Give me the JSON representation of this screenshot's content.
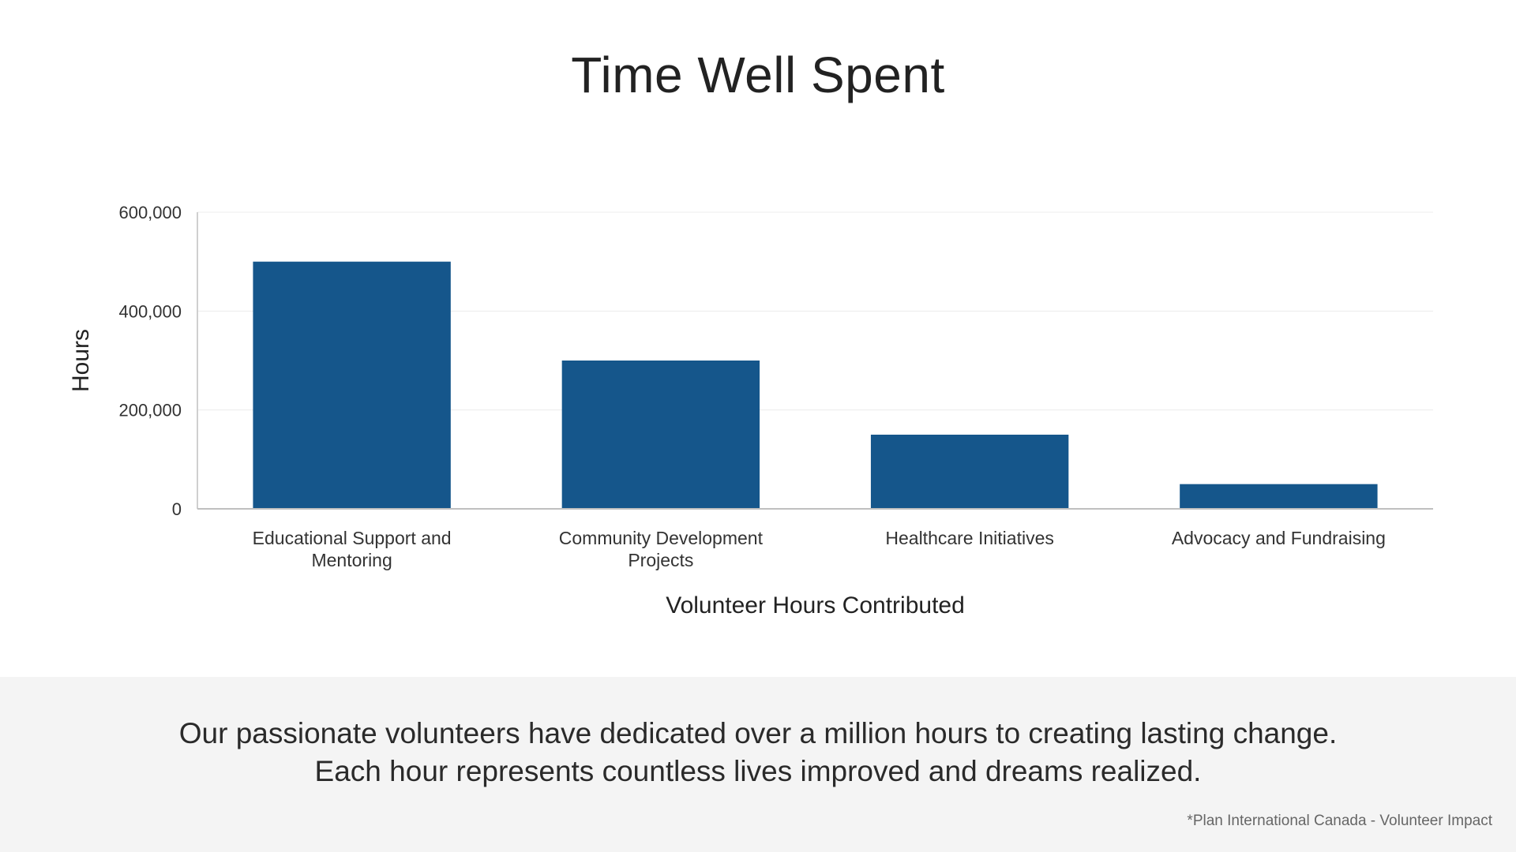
{
  "title": "Time Well Spent",
  "chart_data": {
    "type": "bar",
    "categories": [
      [
        "Educational Support and",
        "Mentoring"
      ],
      [
        "Community Development",
        "Projects"
      ],
      [
        "Healthcare Initiatives"
      ],
      [
        "Advocacy and Fundraising"
      ]
    ],
    "values": [
      500000,
      300000,
      150000,
      50000
    ],
    "xlabel": "Volunteer Hours Contributed",
    "ylabel": "Hours",
    "ylim": [
      0,
      600000
    ],
    "yticks": [
      0,
      200000,
      400000,
      600000
    ],
    "ytick_labels": [
      "0",
      "200,000",
      "400,000",
      "600,000"
    ],
    "bar_color": "#15568b",
    "grid": true
  },
  "footer": {
    "message": "Our passionate volunteers have dedicated over a million hours to creating lasting change. Each hour represents countless lives improved and dreams realized.",
    "source": "*Plan International Canada - Volunteer Impact"
  }
}
